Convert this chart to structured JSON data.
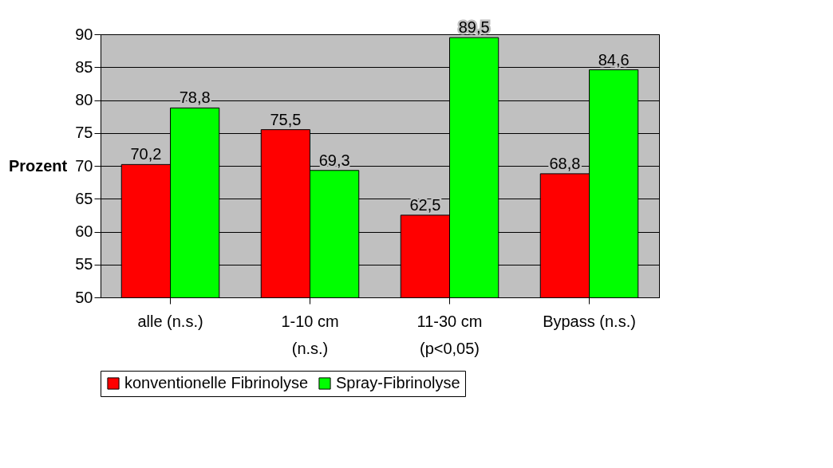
{
  "chart_data": {
    "type": "bar",
    "ylabel": "Prozent",
    "categories": [
      "alle (n.s.)",
      "1-10 cm\n(n.s.)",
      "11-30 cm\n(p<0,05)",
      "Bypass (n.s.)"
    ],
    "series": [
      {
        "name": "konventionelle Fibrinolyse",
        "color": "#ff0000",
        "values": [
          70.2,
          75.5,
          62.5,
          68.8
        ],
        "value_labels": [
          "70,2",
          "75,5",
          "62,5",
          "68,8"
        ]
      },
      {
        "name": "Spray-Fibrinolyse",
        "color": "#00ff00",
        "values": [
          78.8,
          69.3,
          89.5,
          84.6
        ],
        "value_labels": [
          "78,8",
          "69,3",
          "89,5",
          "84,6"
        ]
      }
    ],
    "ylim": [
      50,
      90
    ],
    "yticks": [
      50,
      55,
      60,
      65,
      70,
      75,
      80,
      85,
      90
    ],
    "grid": "y",
    "legend": "bottom"
  }
}
